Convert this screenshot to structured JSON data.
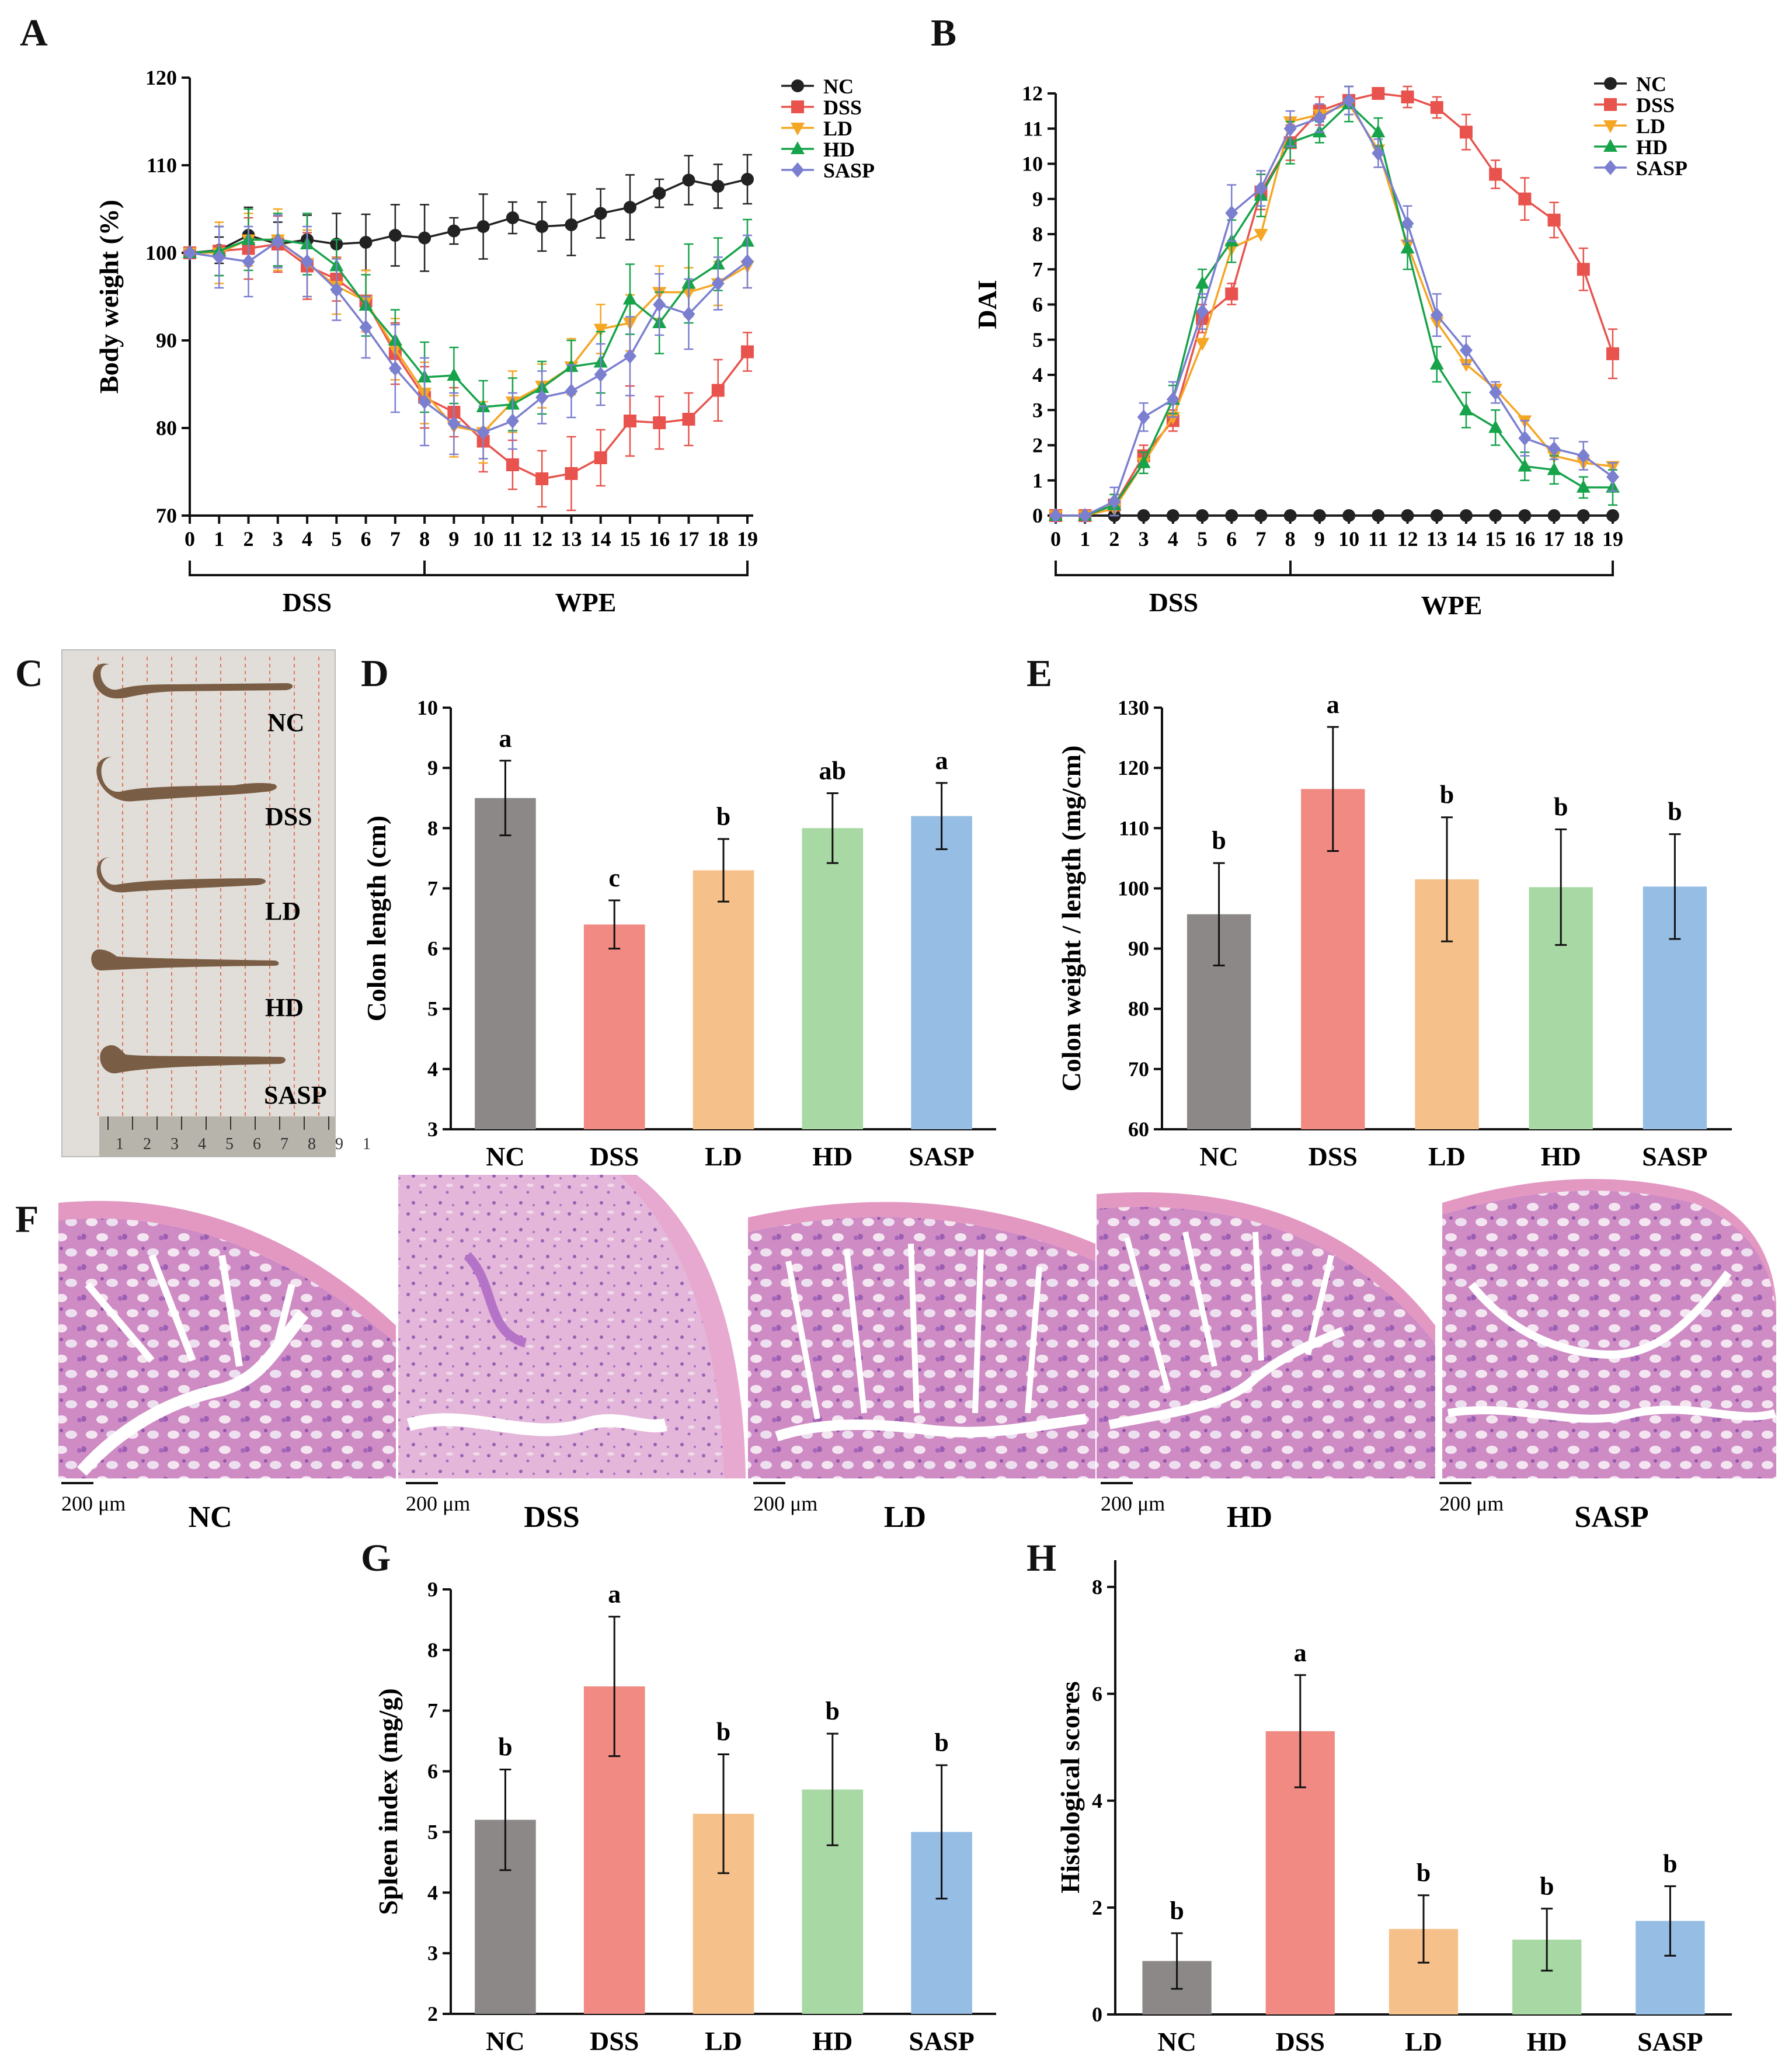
{
  "colors": {
    "NC": "#222222",
    "DSS": "#e8534d",
    "LD": "#f5a623",
    "HD": "#16a34a",
    "SASP": "#7b7fd0",
    "bar_NC": "#8c8888",
    "bar_DSS": "#f08a82",
    "bar_LD": "#f6c08a",
    "bar_HD": "#a8d8a3",
    "bar_SASP": "#96bde4"
  },
  "panels": {
    "A": "A",
    "B": "B",
    "C": "C",
    "D": "D",
    "E": "E",
    "F": "F",
    "G": "G",
    "H": "H"
  },
  "phases": {
    "dss": "DSS",
    "wpe": "WPE"
  },
  "photo_c": {
    "labels": [
      "NC",
      "DSS",
      "LD",
      "HD",
      "SASP"
    ],
    "ruler_numbers": "1 2 3 4 5 6 7 8 9 1"
  },
  "histology": {
    "scale_bar": "200 μm",
    "labels": [
      "NC",
      "DSS",
      "LD",
      "HD",
      "SASP"
    ]
  },
  "chart_data": [
    {
      "id": "A",
      "type": "line",
      "title": "",
      "xlabel": "",
      "ylabel": "Body weight (%)",
      "x": [
        0,
        1,
        2,
        3,
        4,
        5,
        6,
        7,
        8,
        9,
        10,
        11,
        12,
        13,
        14,
        15,
        16,
        17,
        18,
        19
      ],
      "xlim": [
        0,
        19
      ],
      "ylim": [
        70,
        120
      ],
      "yticks": [
        70,
        80,
        90,
        100,
        110,
        120
      ],
      "legend": "top-right",
      "series": [
        {
          "name": "NC",
          "marker": "circle",
          "values": [
            100,
            100.3,
            102,
            101,
            101.5,
            101,
            101.2,
            102,
            101.7,
            102.5,
            103,
            104,
            103,
            103.2,
            104.5,
            105.2,
            106.8,
            108.3,
            107.6,
            108.4
          ],
          "errors": [
            0.3,
            1.5,
            3.2,
            2.5,
            2.8,
            3.5,
            3.2,
            3.5,
            3.8,
            1.5,
            3.7,
            1.8,
            2.8,
            3.5,
            2.8,
            3.7,
            1.6,
            2.8,
            2.5,
            2.8
          ]
        },
        {
          "name": "DSS",
          "marker": "square",
          "values": [
            100,
            100.2,
            100.5,
            101,
            98.5,
            97,
            94.5,
            88.5,
            83.5,
            81.8,
            78.5,
            75.8,
            74.2,
            74.8,
            76.6,
            80.8,
            80.6,
            81,
            84.3,
            88.7
          ],
          "errors": [
            0.3,
            2.8,
            3.5,
            3.2,
            3.8,
            2.5,
            3.5,
            3.5,
            3.5,
            2.8,
            3.5,
            2.8,
            3.2,
            4.2,
            3.2,
            4,
            3,
            3,
            3.5,
            2.2
          ]
        },
        {
          "name": "LD",
          "marker": "triangle-down",
          "values": [
            100,
            100,
            101.5,
            101.5,
            98.8,
            96.2,
            94.5,
            89,
            84,
            80.2,
            79.5,
            83,
            84.8,
            87,
            91.3,
            92,
            95.5,
            95.5,
            96.5,
            98.5
          ],
          "errors": [
            0.3,
            3.5,
            3,
            3.5,
            3.8,
            3.2,
            3.5,
            3.5,
            3.5,
            3.5,
            3.5,
            3.5,
            2.5,
            3.2,
            2.8,
            3.2,
            3,
            2.8,
            2.5,
            2.5
          ]
        },
        {
          "name": "HD",
          "marker": "triangle-up",
          "values": [
            100,
            100.2,
            101.5,
            101.5,
            101,
            98.5,
            94,
            90,
            85.8,
            86,
            82.4,
            82.7,
            84.6,
            87,
            87.5,
            94.7,
            92,
            96.5,
            98.7,
            101.3
          ],
          "errors": [
            0.3,
            2.8,
            3.5,
            3,
            3.5,
            3,
            3.5,
            3.5,
            4,
            3.2,
            3,
            3,
            3,
            3,
            3.5,
            4,
            3.5,
            4.5,
            3,
            2.5
          ]
        },
        {
          "name": "SASP",
          "marker": "diamond",
          "values": [
            100,
            99.5,
            99,
            101.3,
            99,
            95.8,
            91.5,
            86.8,
            83,
            80.5,
            79.5,
            80.8,
            83.5,
            84.2,
            86.1,
            88.2,
            94.1,
            93,
            96.5,
            99
          ],
          "errors": [
            0.3,
            3.5,
            4,
            3,
            4,
            3.5,
            3.5,
            5,
            5,
            3.5,
            3,
            3.2,
            3,
            3,
            3.5,
            4.5,
            3.5,
            4,
            3,
            3
          ]
        }
      ]
    },
    {
      "id": "B",
      "type": "line",
      "title": "",
      "xlabel": "",
      "ylabel": "DAI",
      "x": [
        0,
        1,
        2,
        3,
        4,
        5,
        6,
        7,
        8,
        9,
        10,
        11,
        12,
        13,
        14,
        15,
        16,
        17,
        18,
        19
      ],
      "xlim": [
        0,
        19
      ],
      "ylim": [
        0,
        12
      ],
      "yticks": [
        0,
        1,
        2,
        3,
        4,
        5,
        6,
        7,
        8,
        9,
        10,
        11,
        12
      ],
      "legend": "top-right",
      "series": [
        {
          "name": "NC",
          "marker": "circle",
          "values": [
            0,
            0,
            0,
            0,
            0,
            0,
            0,
            0,
            0,
            0,
            0,
            0,
            0,
            0,
            0,
            0,
            0,
            0,
            0,
            0
          ],
          "errors": [
            0,
            0,
            0,
            0,
            0,
            0,
            0,
            0,
            0,
            0,
            0,
            0,
            0,
            0,
            0,
            0,
            0,
            0,
            0,
            0
          ]
        },
        {
          "name": "DSS",
          "marker": "square",
          "values": [
            0,
            0,
            0.3,
            1.7,
            2.7,
            5.6,
            6.3,
            9.2,
            10.6,
            11.5,
            11.8,
            12,
            11.9,
            11.6,
            10.9,
            9.7,
            9,
            8.4,
            7,
            4.6
          ],
          "errors": [
            0,
            0,
            0.3,
            0.3,
            0.3,
            0.4,
            0.3,
            0.5,
            0.5,
            0.4,
            0.4,
            0.1,
            0.3,
            0.3,
            0.5,
            0.4,
            0.6,
            0.5,
            0.6,
            0.7
          ]
        },
        {
          "name": "LD",
          "marker": "triangle-down",
          "values": [
            0,
            0,
            0.2,
            1.5,
            2.8,
            4.9,
            7.6,
            8,
            11.2,
            11.4,
            11.7,
            10.4,
            7.7,
            5.5,
            4.3,
            3.6,
            2.7,
            1.7,
            1.5,
            1.4
          ]
        },
        {
          "name": "HD",
          "marker": "triangle-up",
          "values": [
            0,
            0,
            0.3,
            1.5,
            3.3,
            6.6,
            7.8,
            9.1,
            10.6,
            10.9,
            11.7,
            10.9,
            7.6,
            4.3,
            3,
            2.5,
            1.4,
            1.3,
            0.8,
            0.8
          ],
          "errors": [
            0,
            0,
            0.3,
            0.3,
            0.4,
            0.4,
            0.6,
            0.6,
            0.6,
            0.3,
            0.5,
            0.4,
            0.6,
            0.5,
            0.5,
            0.5,
            0.4,
            0.4,
            0.3,
            0.5
          ]
        },
        {
          "name": "SASP",
          "marker": "diamond",
          "values": [
            0,
            0,
            0.4,
            2.8,
            3.3,
            5.8,
            8.6,
            9.3,
            11,
            11.3,
            11.8,
            10.3,
            8.3,
            5.7,
            4.7,
            3.5,
            2.2,
            1.9,
            1.7,
            1.1
          ],
          "errors": [
            0,
            0,
            0.4,
            0.4,
            0.5,
            0.5,
            0.8,
            0.5,
            0.5,
            0.4,
            0.4,
            0.4,
            0.5,
            0.6,
            0.4,
            0.3,
            0.5,
            0.3,
            0.4,
            0.4
          ]
        }
      ]
    },
    {
      "id": "D",
      "type": "bar",
      "ylabel": "Colon length (cm)",
      "categories": [
        "NC",
        "DSS",
        "LD",
        "HD",
        "SASP"
      ],
      "values": [
        8.5,
        6.4,
        7.3,
        8.0,
        8.2
      ],
      "errors": [
        0.62,
        0.4,
        0.52,
        0.58,
        0.55
      ],
      "letters": [
        "a",
        "c",
        "b",
        "ab",
        "a"
      ],
      "ylim": [
        3,
        10
      ],
      "yticks": [
        3,
        4,
        5,
        6,
        7,
        8,
        9,
        10
      ]
    },
    {
      "id": "E",
      "type": "bar",
      "ylabel": "Colon weight / length (mg/cm)",
      "categories": [
        "NC",
        "DSS",
        "LD",
        "HD",
        "SASP"
      ],
      "values": [
        95.7,
        116.5,
        101.5,
        100.2,
        100.3
      ],
      "errors": [
        8.5,
        10.3,
        10.3,
        9.6,
        8.7
      ],
      "letters": [
        "b",
        "a",
        "b",
        "b",
        "b"
      ],
      "ylim": [
        60,
        130
      ],
      "yticks": [
        60,
        70,
        80,
        90,
        100,
        110,
        120,
        130
      ]
    },
    {
      "id": "G",
      "type": "bar",
      "ylabel": "Spleen index (mg/g)",
      "categories": [
        "NC",
        "DSS",
        "LD",
        "HD",
        "SASP"
      ],
      "values": [
        5.2,
        7.4,
        5.3,
        5.7,
        5.0
      ],
      "errors": [
        0.83,
        1.15,
        0.98,
        0.92,
        1.1
      ],
      "letters": [
        "b",
        "a",
        "b",
        "b",
        "b"
      ],
      "ylim": [
        2,
        9
      ],
      "yticks": [
        2,
        3,
        4,
        5,
        6,
        7,
        8,
        9
      ]
    },
    {
      "id": "H",
      "type": "bar",
      "ylabel": "Histological scores",
      "categories": [
        "NC",
        "DSS",
        "LD",
        "HD",
        "SASP"
      ],
      "values": [
        1.0,
        5.3,
        1.6,
        1.4,
        1.75
      ],
      "errors": [
        0.52,
        1.05,
        0.63,
        0.58,
        0.65
      ],
      "letters": [
        "b",
        "a",
        "b",
        "b",
        "b"
      ],
      "ylim": [
        0,
        8.5
      ],
      "yticks": [
        0,
        2,
        4,
        6,
        8
      ]
    }
  ]
}
